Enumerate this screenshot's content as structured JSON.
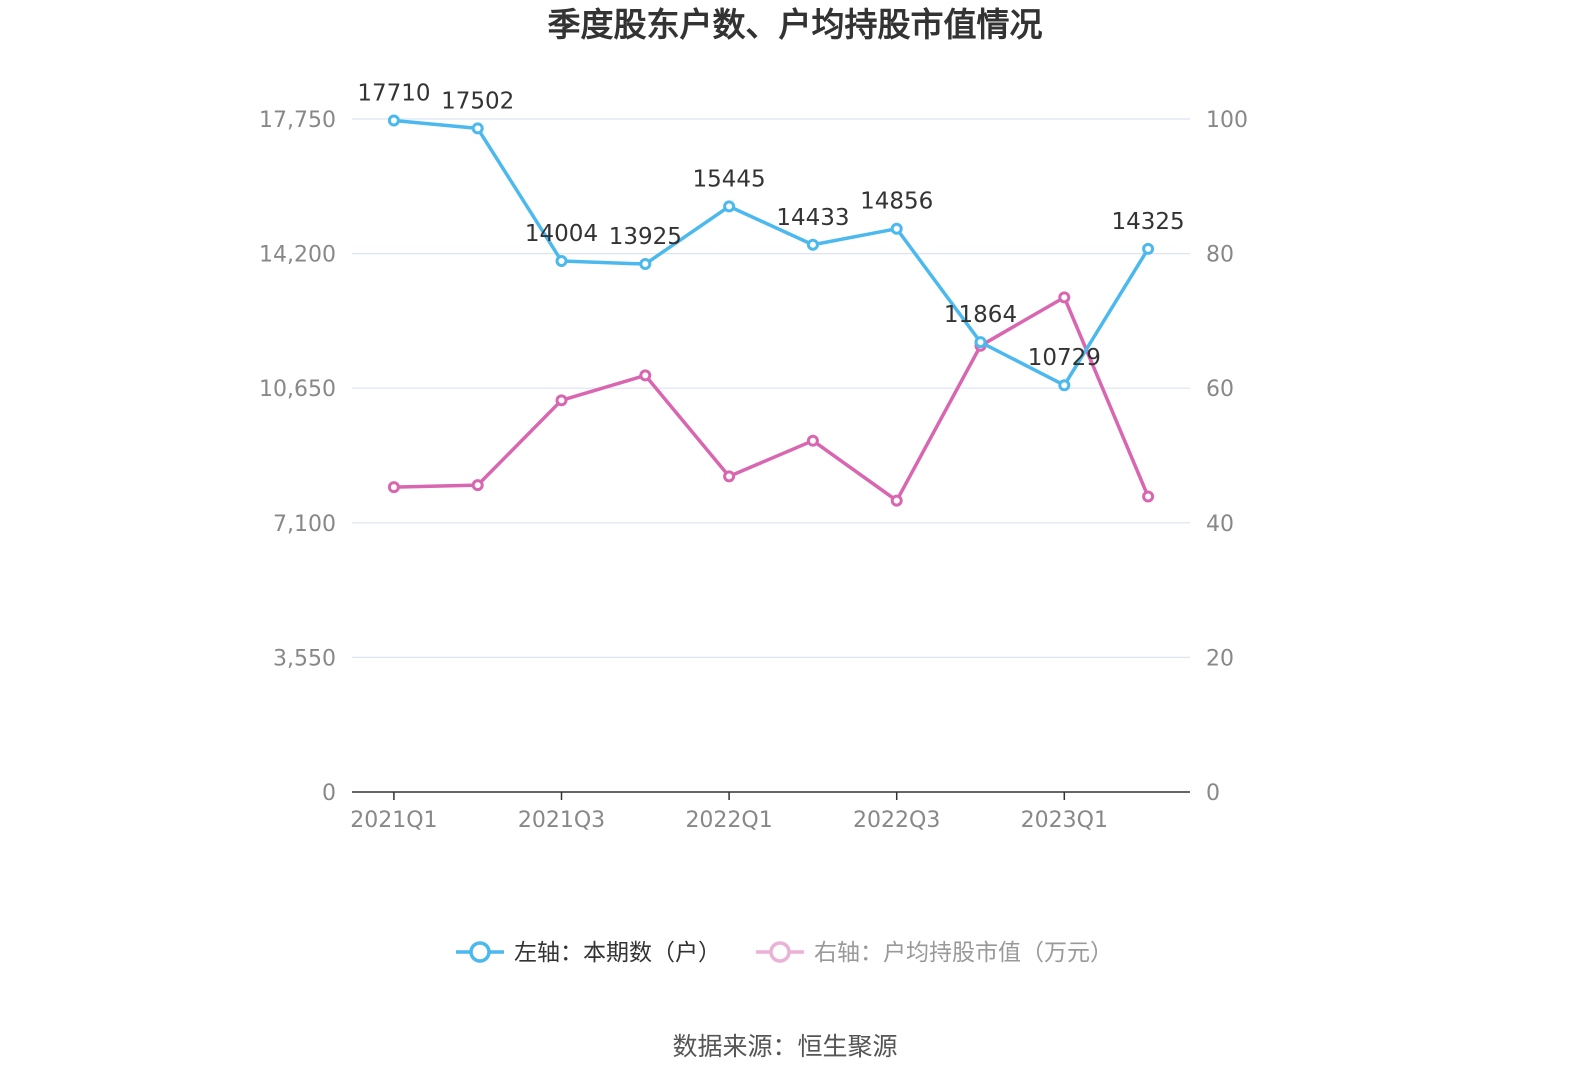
{
  "chart_data": {
    "type": "line",
    "title": "季度股东户数、户均持股市值情况",
    "categories": [
      "2021Q1",
      "2021Q2",
      "2021Q3",
      "2021Q4",
      "2022Q1",
      "2022Q2",
      "2022Q3",
      "2022Q4",
      "2023Q1",
      "2023Q2"
    ],
    "x_tick_labels": [
      "2021Q1",
      "2021Q3",
      "2022Q1",
      "2022Q3",
      "2023Q1"
    ],
    "left_axis": {
      "ticks": [
        "0",
        "3,550",
        "7,100",
        "10,650",
        "14,200",
        "17,750"
      ],
      "ylim": [
        0,
        17750
      ]
    },
    "right_axis": {
      "ticks": [
        "0",
        "20",
        "40",
        "60",
        "80",
        "100"
      ],
      "ylim": [
        0,
        100
      ]
    },
    "grid": true,
    "legend_position": "bottom",
    "series": [
      {
        "name": "左轴：本期数（户）",
        "axis": "left",
        "color": "#4cb9ee",
        "values": [
          17710,
          17502,
          14004,
          13925,
          15445,
          14433,
          14856,
          11864,
          10729,
          14325
        ],
        "labels": [
          "17710",
          "17502",
          "14004",
          "13925",
          "15445",
          "14433",
          "14856",
          "11864",
          "10729",
          "14325"
        ]
      },
      {
        "name": "右轴：户均持股市值（万元）",
        "axis": "right",
        "color": "#d966b0",
        "values": [
          45.3,
          45.6,
          58.2,
          61.9,
          46.9,
          52.2,
          43.3,
          66.3,
          73.5,
          43.9
        ]
      }
    ],
    "source": "数据来源：恒生聚源"
  }
}
